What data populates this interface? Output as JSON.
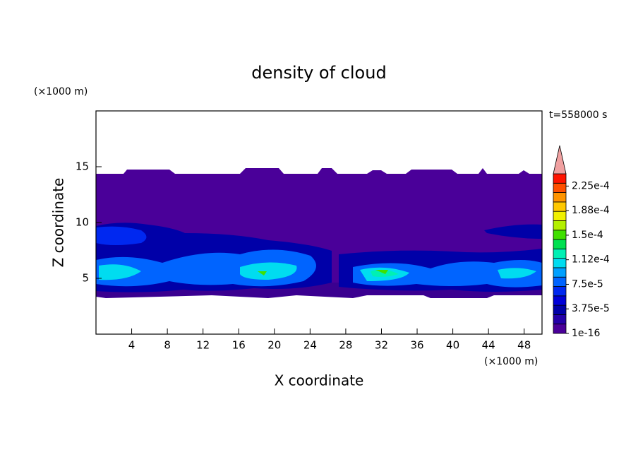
{
  "chart_data": {
    "type": "contour",
    "title": "density of cloud",
    "x_label": "X coordinate",
    "y_label": "Z coordinate",
    "x_unit": "(×1000 m)",
    "y_unit": "(×1000 m)",
    "annotation": "t=558000 s",
    "xlim": [
      0,
      50
    ],
    "xticks": [
      4,
      8,
      12,
      16,
      20,
      24,
      28,
      32,
      36,
      40,
      44,
      48
    ],
    "ylim": [
      0,
      20
    ],
    "yticks": [
      5,
      10,
      15
    ],
    "colorbar": {
      "lim": [
        0,
        0.00024375
      ],
      "colors": [
        "#4a0099",
        "#2400a8",
        "#0000a8",
        "#0000d8",
        "#0028f0",
        "#0064ff",
        "#00a0ff",
        "#00dcf0",
        "#00f0b4",
        "#00e050",
        "#40e000",
        "#b4f000",
        "#f0f000",
        "#ffc800",
        "#ff9400",
        "#ff5000",
        "#ff1400"
      ],
      "extend_color": "#f0a0a0",
      "ticks": [
        1e-16,
        {
          "value": 3.75e-05,
          "label": "3.75e-5"
        },
        {
          "value": 7.5e-05,
          "label": "7.5e-5"
        },
        {
          "value": 0.0001125,
          "label": "1.12e-4"
        },
        {
          "value": 0.00015,
          "label": "1.5e-4"
        },
        {
          "value": 0.0001875,
          "label": "1.88e-4"
        },
        {
          "value": 0.000225,
          "label": "2.25e-4"
        }
      ]
    }
  }
}
